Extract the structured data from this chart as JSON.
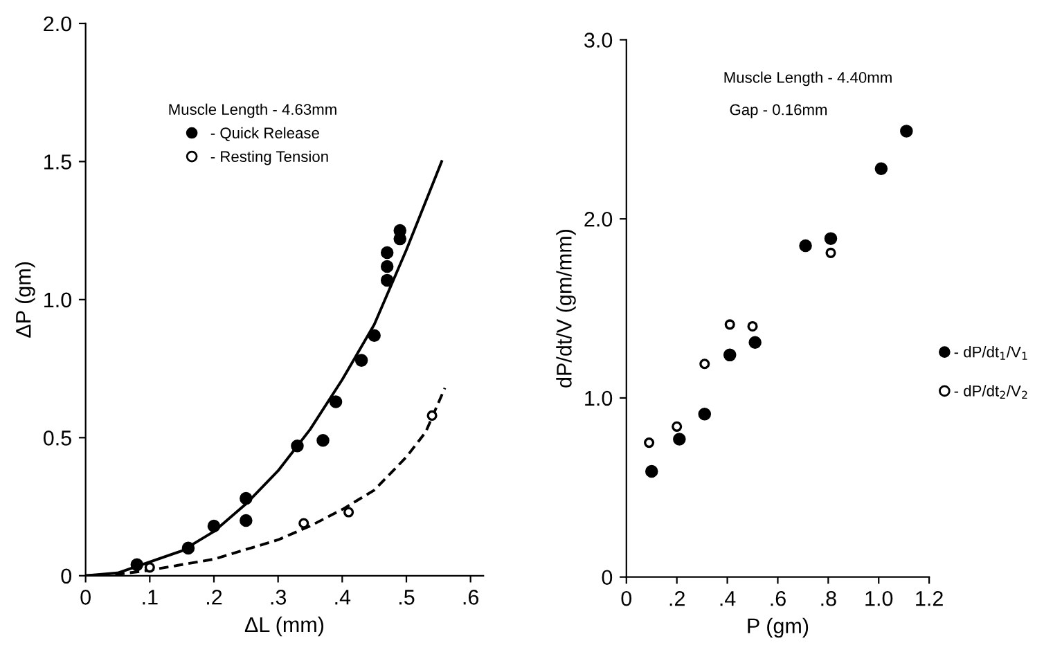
{
  "chart_data": [
    {
      "type": "scatter",
      "xlabel": "ΔL (mm)",
      "ylabel": "ΔP (gm)",
      "legend_title": "Muscle Length - 4.63mm",
      "legend": "top",
      "marker": "circle",
      "xlim": [
        0,
        0.62
      ],
      "xticks": [
        0,
        {
          "value": 0.1,
          "label": ".1"
        },
        {
          "value": 0.2,
          "label": ".2"
        },
        {
          "value": 0.3,
          "label": ".3"
        },
        {
          "value": 0.4,
          "label": ".4"
        },
        {
          "value": 0.5,
          "label": ".5"
        },
        {
          "value": 0.6,
          "label": ".6"
        }
      ],
      "ylim": [
        0,
        2.0
      ],
      "yticks": [
        0,
        {
          "value": 0.5,
          "label": "0.5"
        },
        {
          "value": 1.0,
          "label": "1.0"
        },
        {
          "value": 1.5,
          "label": "1.5"
        },
        {
          "value": 2.0,
          "label": "2.0"
        }
      ],
      "series": [
        {
          "name": "- Quick Release",
          "color": "#000000",
          "x": [
            0.08,
            0.16,
            0.2,
            0.25,
            0.25,
            0.33,
            0.37,
            0.39,
            0.43,
            0.45,
            0.47,
            0.47,
            0.47,
            0.49,
            0.49
          ],
          "values": [
            0.04,
            0.1,
            0.18,
            0.2,
            0.28,
            0.47,
            0.49,
            0.63,
            0.78,
            0.87,
            1.07,
            1.12,
            1.17,
            1.22,
            1.25
          ]
        },
        {
          "name": "- Resting Tension",
          "color": "#000000",
          "x": [
            0.1,
            0.34,
            0.41,
            0.54
          ],
          "values": [
            0.03,
            0.19,
            0.23,
            0.58
          ]
        },
        {
          "type": "line",
          "color": "#000000",
          "marker": "none",
          "line_style": "solid",
          "x": [
            0,
            0.05,
            0.1,
            0.15,
            0.2,
            0.25,
            0.3,
            0.35,
            0.4,
            0.45,
            0.5,
            0.555
          ],
          "values": [
            0,
            0.01,
            0.05,
            0.09,
            0.16,
            0.26,
            0.38,
            0.53,
            0.71,
            0.91,
            1.18,
            1.5
          ]
        },
        {
          "type": "line",
          "color": "#000000",
          "marker": "none",
          "line_style": "dashed",
          "x": [
            0,
            0.05,
            0.1,
            0.2,
            0.3,
            0.35,
            0.4,
            0.45,
            0.5,
            0.53,
            0.56
          ],
          "values": [
            0,
            0.005,
            0.02,
            0.06,
            0.13,
            0.18,
            0.24,
            0.31,
            0.43,
            0.52,
            0.68
          ]
        }
      ]
    },
    {
      "type": "scatter",
      "xlabel": "P (gm)",
      "ylabel": "dP/dt/V (gm/mm)",
      "legend": "right",
      "marker": "circle",
      "annotations": [
        "Muscle Length - 4.40mm",
        "Gap - 0.16mm"
      ],
      "xlim": [
        0,
        1.2
      ],
      "xticks": [
        0,
        {
          "value": 0.2,
          "label": ".2"
        },
        {
          "value": 0.4,
          "label": ".4"
        },
        {
          "value": 0.6,
          "label": ".6"
        },
        {
          "value": 0.8,
          "label": ".8"
        },
        {
          "value": 1.0,
          "label": "1.0"
        },
        {
          "value": 1.2,
          "label": "1.2"
        }
      ],
      "ylim": [
        0,
        3.0
      ],
      "yticks": [
        0,
        {
          "value": 1.0,
          "label": "1.0"
        },
        {
          "value": 2.0,
          "label": "2.0"
        },
        {
          "value": 3.0,
          "label": "3.0"
        }
      ],
      "series": [
        {
          "name": "- dP/dt$_{1}$/V$_{1}$",
          "color": "#000000",
          "x": [
            0.1,
            0.21,
            0.31,
            0.41,
            0.51,
            0.71,
            0.81,
            1.01,
            1.11
          ],
          "values": [
            0.59,
            0.77,
            0.91,
            1.24,
            1.31,
            1.85,
            1.89,
            2.28,
            2.49
          ]
        },
        {
          "name": "- dP/dt$_{2}$/V$_{2}$",
          "color": "#000000",
          "x": [
            0.09,
            0.2,
            0.31,
            0.41,
            0.5,
            0.81
          ],
          "values": [
            0.75,
            0.84,
            1.19,
            1.41,
            1.4,
            1.81
          ]
        }
      ]
    }
  ]
}
